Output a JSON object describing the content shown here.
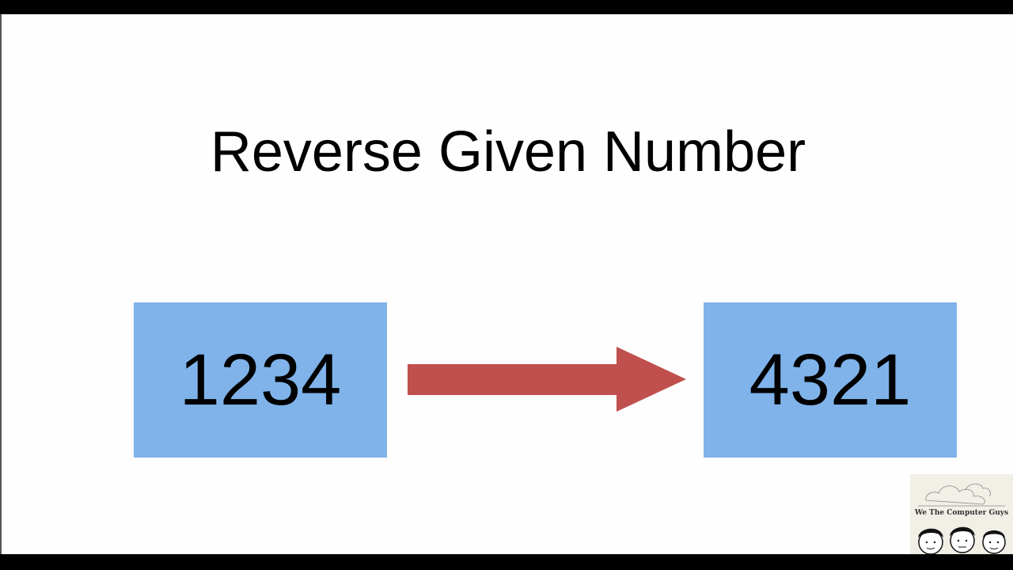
{
  "title": "Reverse Given Number",
  "input_number": "1234",
  "output_number": "4321",
  "colors": {
    "box": "#7fb3ea",
    "arrow": "#c0504d"
  },
  "logo": {
    "text": "We The Computer Guys"
  }
}
